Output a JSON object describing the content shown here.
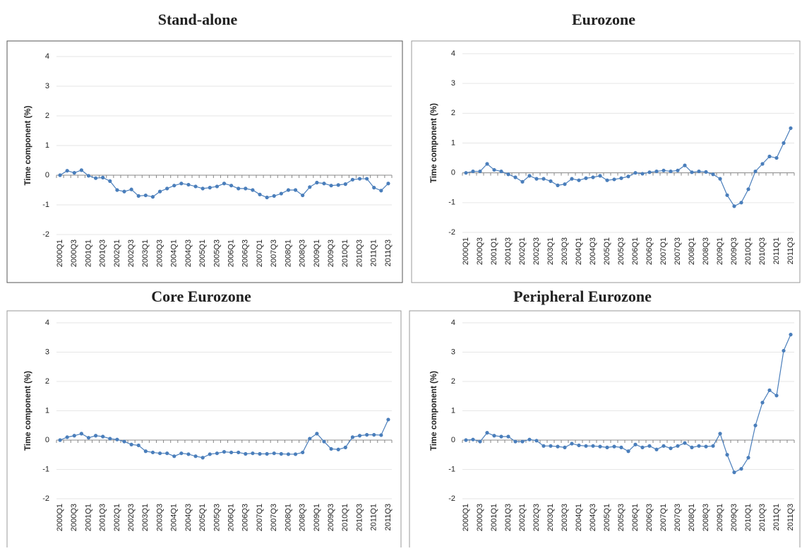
{
  "chart_data": [
    {
      "type": "line",
      "title": "Stand-alone",
      "ylabel": "Time component (%)",
      "categories": [
        "2000Q1",
        null,
        "2000Q3",
        null,
        "2001Q1",
        null,
        "2001Q3",
        null,
        "2002Q1",
        null,
        "2002Q3",
        null,
        "2003Q1",
        null,
        "2003Q3",
        null,
        "2004Q1",
        null,
        "2004Q3",
        null,
        "2005Q1",
        null,
        "2005Q3",
        null,
        "2006Q1",
        null,
        "2006Q3",
        null,
        "2007Q1",
        null,
        "2007Q3",
        null,
        "2008Q1",
        null,
        "2008Q3",
        null,
        "2009Q1",
        null,
        "2009Q3",
        null,
        "2010Q1",
        null,
        "2010Q3",
        null,
        "2011Q1",
        null,
        "2011Q3"
      ],
      "values": [
        0,
        0.15,
        0.08,
        0.17,
        -0.02,
        -0.1,
        -0.08,
        -0.2,
        -0.5,
        -0.55,
        -0.48,
        -0.7,
        -0.68,
        -0.73,
        -0.55,
        -0.45,
        -0.35,
        -0.28,
        -0.32,
        -0.38,
        -0.45,
        -0.42,
        -0.38,
        -0.28,
        -0.35,
        -0.45,
        -0.45,
        -0.5,
        -0.65,
        -0.75,
        -0.7,
        -0.62,
        -0.5,
        -0.5,
        -0.68,
        -0.4,
        -0.25,
        -0.28,
        -0.35,
        -0.33,
        -0.3,
        -0.15,
        -0.12,
        -0.12,
        -0.42,
        -0.52,
        -0.28
      ],
      "color": "#4a7ebb",
      "ylim": [
        -2,
        4
      ],
      "yticks": [
        -2,
        -1,
        0,
        1,
        2,
        3,
        4
      ],
      "grid": true
    },
    {
      "type": "line",
      "title": "Eurozone",
      "ylabel": "Time component (%)",
      "categories": [
        "2000Q1",
        null,
        "2000Q3",
        null,
        "2001Q1",
        null,
        "2001Q3",
        null,
        "2002Q1",
        null,
        "2002Q3",
        null,
        "2003Q1",
        null,
        "2003Q3",
        null,
        "2004Q1",
        null,
        "2004Q3",
        null,
        "2005Q1",
        null,
        "2005Q3",
        null,
        "2006Q1",
        null,
        "2006Q3",
        null,
        "2007Q1",
        null,
        "2007Q3",
        null,
        "2008Q1",
        null,
        "2008Q3",
        null,
        "2009Q1",
        null,
        "2009Q3",
        null,
        "2010Q1",
        null,
        "2010Q3",
        null,
        "2011Q1",
        null,
        "2011Q3"
      ],
      "values": [
        0,
        0.05,
        0.05,
        0.3,
        0.1,
        0.05,
        -0.05,
        -0.15,
        -0.3,
        -0.1,
        -0.2,
        -0.2,
        -0.28,
        -0.42,
        -0.38,
        -0.2,
        -0.25,
        -0.18,
        -0.15,
        -0.1,
        -0.25,
        -0.22,
        -0.18,
        -0.12,
        0,
        -0.03,
        0.02,
        0.05,
        0.08,
        0.05,
        0.08,
        0.25,
        0.02,
        0.05,
        0.03,
        -0.05,
        -0.2,
        -0.75,
        -1.12,
        -1.0,
        -0.55,
        0.05,
        0.3,
        0.55,
        0.5,
        1.0,
        1.5
      ],
      "color": "#4a7ebb",
      "ylim": [
        -2,
        4
      ],
      "yticks": [
        -2,
        -1,
        0,
        1,
        2,
        3,
        4
      ],
      "grid": true
    },
    {
      "type": "line",
      "title": "Core Eurozone",
      "ylabel": "Time component (%)",
      "categories": [
        "2000Q1",
        null,
        "2000Q3",
        null,
        "2001Q1",
        null,
        "2001Q3",
        null,
        "2002Q1",
        null,
        "2002Q3",
        null,
        "2003Q1",
        null,
        "2003Q3",
        null,
        "2004Q1",
        null,
        "2004Q3",
        null,
        "2005Q1",
        null,
        "2005Q3",
        null,
        "2006Q1",
        null,
        "2006Q3",
        null,
        "2007Q1",
        null,
        "2007Q3",
        null,
        "2008Q1",
        null,
        "2008Q3",
        null,
        "2009Q1",
        null,
        "2009Q3",
        null,
        "2010Q1",
        null,
        "2010Q3",
        null,
        "2011Q1",
        null,
        "2011Q3"
      ],
      "values": [
        0,
        0.1,
        0.15,
        0.22,
        0.08,
        0.15,
        0.12,
        0.05,
        0.02,
        -0.05,
        -0.15,
        -0.18,
        -0.38,
        -0.42,
        -0.45,
        -0.45,
        -0.55,
        -0.45,
        -0.48,
        -0.55,
        -0.6,
        -0.48,
        -0.45,
        -0.4,
        -0.42,
        -0.42,
        -0.47,
        -0.45,
        -0.47,
        -0.47,
        -0.45,
        -0.47,
        -0.48,
        -0.48,
        -0.42,
        0.05,
        0.22,
        -0.05,
        -0.3,
        -0.32,
        -0.25,
        0.1,
        0.15,
        0.18,
        0.18,
        0.17,
        0.7
      ],
      "color": "#4a7ebb",
      "ylim": [
        -2,
        4
      ],
      "yticks": [
        -2,
        -1,
        0,
        1,
        2,
        3,
        4
      ],
      "grid": true
    },
    {
      "type": "line",
      "title": "Peripheral Eurozone",
      "ylabel": "Time component (%)",
      "categories": [
        "2000Q1",
        null,
        "2000Q3",
        null,
        "2001Q1",
        null,
        "2001Q3",
        null,
        "2002Q1",
        null,
        "2002Q3",
        null,
        "2003Q1",
        null,
        "2003Q3",
        null,
        "2004Q1",
        null,
        "2004Q3",
        null,
        "2005Q1",
        null,
        "2005Q3",
        null,
        "2006Q1",
        null,
        "2006Q3",
        null,
        "2007Q1",
        null,
        "2007Q3",
        null,
        "2008Q1",
        null,
        "2008Q3",
        null,
        "2009Q1",
        null,
        "2009Q3",
        null,
        "2010Q1",
        null,
        "2010Q3",
        null,
        "2011Q1",
        null,
        "2011Q3"
      ],
      "values": [
        0,
        0.02,
        -0.05,
        0.25,
        0.15,
        0.12,
        0.12,
        -0.05,
        -0.05,
        0.02,
        -0.02,
        -0.2,
        -0.2,
        -0.22,
        -0.25,
        -0.12,
        -0.18,
        -0.2,
        -0.2,
        -0.22,
        -0.25,
        -0.22,
        -0.25,
        -0.38,
        -0.15,
        -0.25,
        -0.2,
        -0.32,
        -0.2,
        -0.28,
        -0.2,
        -0.1,
        -0.25,
        -0.2,
        -0.22,
        -0.2,
        0.22,
        -0.5,
        -1.1,
        -0.98,
        -0.6,
        0.5,
        1.28,
        1.7,
        1.52,
        3.05,
        3.6
      ],
      "color": "#4a7ebb",
      "ylim": [
        -2,
        4
      ],
      "yticks": [
        -2,
        -1,
        0,
        1,
        2,
        3,
        4
      ],
      "grid": true
    }
  ]
}
